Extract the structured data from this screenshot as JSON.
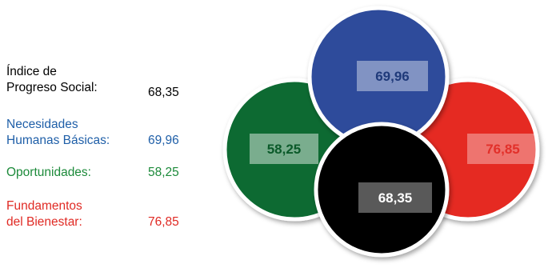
{
  "legend": {
    "items": [
      {
        "label_lines": [
          "Índice de",
          "Progreso Social:"
        ],
        "value": "68,35",
        "color": "#000000"
      },
      {
        "label_lines": [
          "Necesidades",
          "Humanas Básicas:"
        ],
        "value": "69,96",
        "color": "#1f5fa8"
      },
      {
        "label_lines": [
          "Oportunidades:"
        ],
        "value": "58,25",
        "color": "#1c8a3a"
      },
      {
        "label_lines": [
          "Fundamentos",
          "del Bienestar:"
        ],
        "value": "76,85",
        "color": "#e02a24"
      }
    ]
  },
  "chart_data": {
    "type": "diagram",
    "title": "",
    "circles": [
      {
        "name": "Oportunidades",
        "value": 58.25,
        "label": "58,25",
        "fill": "#096b32",
        "text_color": "#0b5a2a"
      },
      {
        "name": "Fundamentos del Bienestar",
        "value": 76.85,
        "label": "76,85",
        "fill": "#e52a24",
        "text_color": "#e2302a"
      },
      {
        "name": "Necesidades Humanas Básicas",
        "value": 69.96,
        "label": "69,96",
        "fill": "#2f4c9b",
        "text_color": "#1f3a7a"
      },
      {
        "name": "Índice de Progreso Social",
        "value": 68.35,
        "label": "68,35",
        "fill": "#000000",
        "text_color": "#ffffff"
      }
    ]
  }
}
